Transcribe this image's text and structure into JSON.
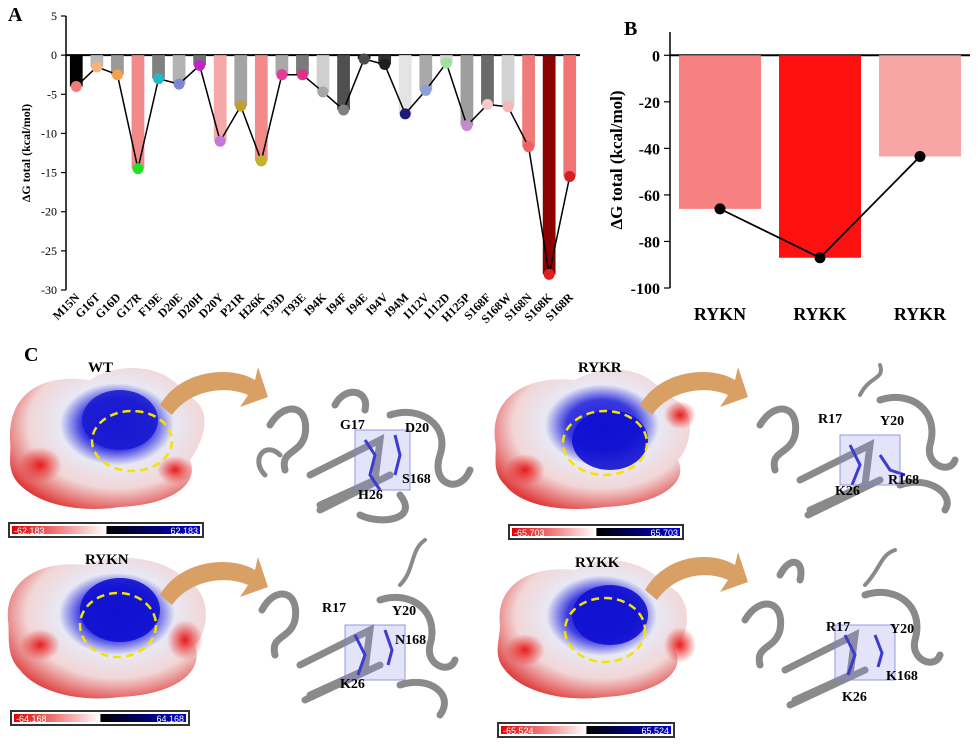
{
  "panels": {
    "a": "A",
    "b": "B",
    "c": "C"
  },
  "chart_data": [
    {
      "type": "bar",
      "ylabel": "ΔG total (kcal/mol)",
      "ylim": [
        -30,
        5
      ],
      "yticks": [
        5,
        0,
        -5,
        -10,
        -15,
        -20,
        -25,
        -30
      ],
      "categories": [
        "M15N",
        "G16T",
        "G16D",
        "G17R",
        "F19E",
        "D20E",
        "D20H",
        "D20Y",
        "P21R",
        "H26K",
        "T93D",
        "T93E",
        "I94K",
        "I94F",
        "I94E",
        "I94V",
        "I94M",
        "I112V",
        "I112D",
        "H125P",
        "S168F",
        "S168W",
        "S168N",
        "S168K",
        "S168R"
      ],
      "values": [
        -4.0,
        -1.5,
        -2.5,
        -14.5,
        -3.0,
        -3.7,
        -1.3,
        -11.0,
        -6.5,
        -13.5,
        -2.5,
        -2.5,
        -4.7,
        -7.0,
        -0.5,
        -1.2,
        -7.5,
        -4.5,
        -1.0,
        -9.0,
        -6.3,
        -6.6,
        -11.7,
        -28.0,
        -15.5
      ],
      "bar_colors": [
        "#000000",
        "#b9b9b9",
        "#9a9a9a",
        "#f28a8a",
        "#808080",
        "#b3b3b3",
        "#707070",
        "#f6a8a8",
        "#a3a3a3",
        "#f28a8a",
        "#a9a9a9",
        "#7a7a7a",
        "#cfcfcf",
        "#4f4f4f",
        "#1a1a1a",
        "#2e2e2e",
        "#e4e4e4",
        "#a9a9a9",
        "#d6d6d6",
        "#9e9e9e",
        "#6a6a6a",
        "#d2d2d2",
        "#f07a7a",
        "#8b0000",
        "#f27474"
      ],
      "dot_colors": [
        "#f47a7a",
        "#f5b27a",
        "#f5a04f",
        "#22e022",
        "#22b8c8",
        "#7f86d6",
        "#c024c8",
        "#c478d8",
        "#c0a02a",
        "#c2b22a",
        "#e43a9a",
        "#e0308a",
        "#a6a6a6",
        "#808080",
        "#4a4a4a",
        "#1e1e1e",
        "#1a1a7a",
        "#8aa0d6",
        "#9ee09e",
        "#c68ad0",
        "#f7c8c8",
        "#f7b6b6",
        "#f06060",
        "#e02020",
        "#d02020"
      ]
    },
    {
      "type": "bar",
      "ylabel": "ΔG total (kcal/mol)",
      "ylim": [
        -100,
        10
      ],
      "yticks": [
        0,
        -20,
        -40,
        -60,
        -80,
        -100
      ],
      "categories": [
        "RYKN",
        "RYKK",
        "RYKR"
      ],
      "values": [
        -66,
        -87,
        -43.5
      ],
      "bar_colors": [
        "#f78080",
        "#ff1010",
        "#f7a6a6"
      ],
      "dot_color": "#000000"
    }
  ],
  "panel_c": {
    "wt": {
      "title": "WT",
      "cbar_min": "-62.183",
      "cbar_max": "62.183",
      "labels": [
        "G17",
        "D20",
        "H26",
        "S168"
      ]
    },
    "rykr": {
      "title": "RYKR",
      "cbar_min": "-65.703",
      "cbar_max": "65.703",
      "labels": [
        "R17",
        "Y20",
        "K26",
        "R168"
      ]
    },
    "rykn": {
      "title": "RYKN",
      "cbar_min": "-64.168",
      "cbar_max": "64.168",
      "labels": [
        "R17",
        "Y20",
        "N168",
        "K26"
      ]
    },
    "rykk": {
      "title": "RYKK",
      "cbar_min": "-65.524",
      "cbar_max": "65.524",
      "labels": [
        "R17",
        "Y20",
        "K168",
        "K26"
      ]
    }
  }
}
